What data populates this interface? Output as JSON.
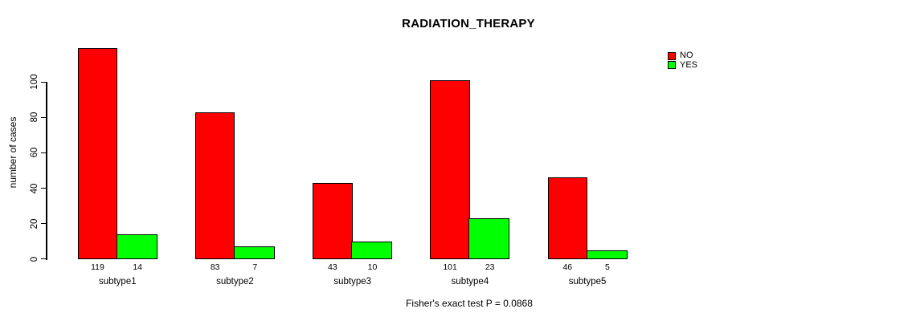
{
  "chart_data": {
    "type": "bar",
    "title": "RADIATION_THERAPY",
    "ylabel": "number of cases",
    "xlabel": "",
    "footnote": "Fisher's exact test P = 0.0868",
    "categories": [
      "subtype1",
      "subtype2",
      "subtype3",
      "subtype4",
      "subtype5"
    ],
    "series": [
      {
        "name": "NO",
        "color": "#FF0000",
        "values": [
          119,
          83,
          43,
          101,
          46
        ]
      },
      {
        "name": "YES",
        "color": "#00FF00",
        "values": [
          14,
          7,
          10,
          23,
          5
        ]
      }
    ],
    "bar_value_labels": [
      [
        "119",
        "14"
      ],
      [
        "83",
        "7"
      ],
      [
        "43",
        "10"
      ],
      [
        "101",
        "23"
      ],
      [
        "46",
        "5"
      ]
    ],
    "yticks": [
      0,
      20,
      40,
      60,
      80,
      100
    ],
    "axis_range": [
      0,
      100
    ],
    "ylim": [
      0,
      125
    ],
    "grid": false,
    "legend_position": "topright",
    "colors": {
      "no": "#FF0000",
      "yes": "#00FF00",
      "axis": "#000000",
      "background": "#FFFFFF"
    }
  }
}
